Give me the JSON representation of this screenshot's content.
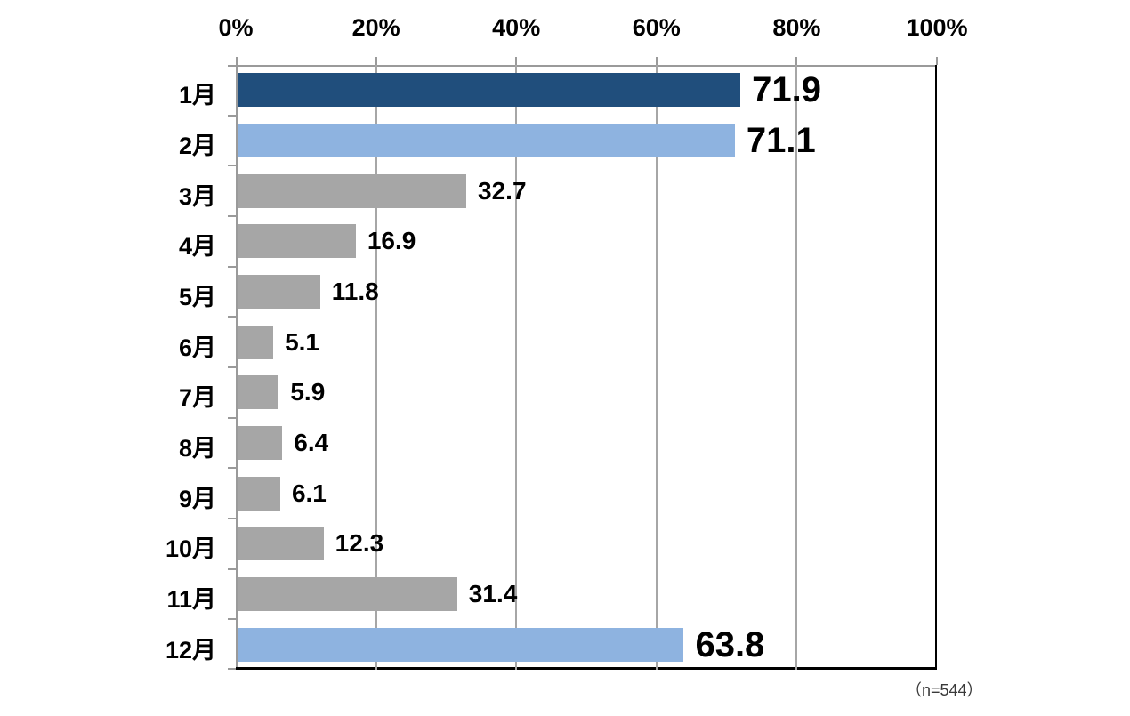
{
  "chart_data": {
    "type": "bar",
    "orientation": "horizontal",
    "title": "",
    "xlabel": "",
    "ylabel": "",
    "categories": [
      "1月",
      "2月",
      "3月",
      "4月",
      "5月",
      "6月",
      "7月",
      "8月",
      "9月",
      "10月",
      "11月",
      "12月"
    ],
    "values": [
      71.9,
      71.1,
      32.7,
      16.9,
      11.8,
      5.1,
      5.9,
      6.4,
      6.1,
      12.3,
      31.4,
      63.8
    ],
    "value_labels": [
      "71.9",
      "71.1",
      "32.7",
      "16.9",
      "11.8",
      "5.1",
      "5.9",
      "6.4",
      "6.1",
      "12.3",
      "31.4",
      "63.8"
    ],
    "bar_colors": [
      "#204e7c",
      "#8eb3e0",
      "#a6a6a6",
      "#a6a6a6",
      "#a6a6a6",
      "#a6a6a6",
      "#a6a6a6",
      "#a6a6a6",
      "#a6a6a6",
      "#a6a6a6",
      "#a6a6a6",
      "#8eb3e0"
    ],
    "emphasized_labels": [
      true,
      true,
      false,
      false,
      false,
      false,
      false,
      false,
      false,
      false,
      false,
      true
    ],
    "x_ticks": [
      "0%",
      "20%",
      "40%",
      "60%",
      "80%",
      "100%"
    ],
    "xlim": [
      0,
      100
    ],
    "grid": true,
    "legend": null,
    "note": "（n=544）"
  },
  "colors": {
    "navy": "#204e7c",
    "light_blue": "#8eb3e0",
    "gray_bar": "#a6a6a6",
    "gridline": "#a6a6a6",
    "axis_gray": "#9a9a9a",
    "axis_black": "#000000",
    "background": "#ffffff"
  }
}
